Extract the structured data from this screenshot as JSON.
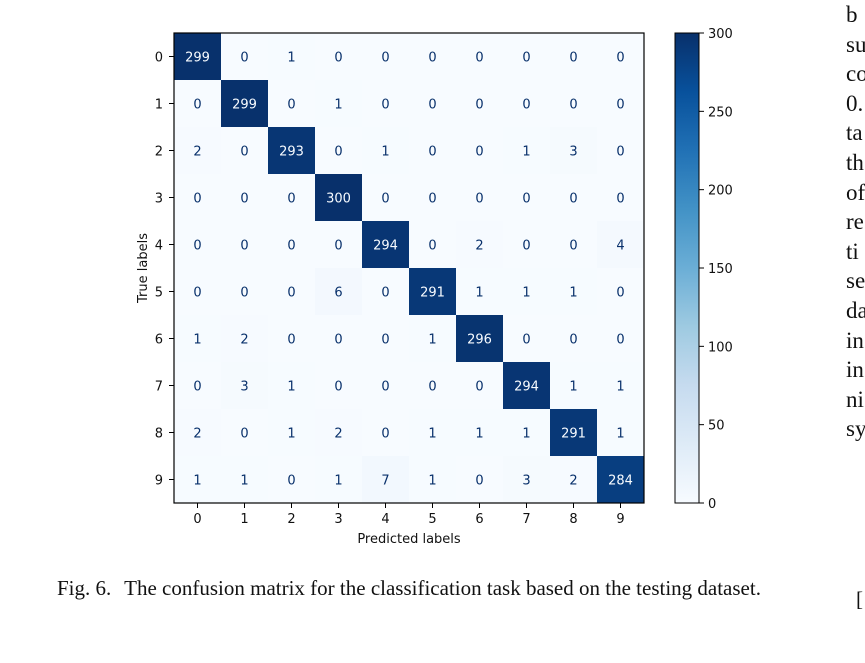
{
  "figure": {
    "caption_label": "Fig. 6.",
    "caption_text": "The confusion matrix for the classification task based on the testing dataset."
  },
  "chart_data": {
    "type": "heatmap",
    "title": "",
    "xlabel": "Predicted labels",
    "ylabel": "True labels",
    "x_categories": [
      "0",
      "1",
      "2",
      "3",
      "4",
      "5",
      "6",
      "7",
      "8",
      "9"
    ],
    "y_categories": [
      "0",
      "1",
      "2",
      "3",
      "4",
      "5",
      "6",
      "7",
      "8",
      "9"
    ],
    "values": [
      [
        299,
        0,
        1,
        0,
        0,
        0,
        0,
        0,
        0,
        0
      ],
      [
        0,
        299,
        0,
        1,
        0,
        0,
        0,
        0,
        0,
        0
      ],
      [
        2,
        0,
        293,
        0,
        1,
        0,
        0,
        1,
        3,
        0
      ],
      [
        0,
        0,
        0,
        300,
        0,
        0,
        0,
        0,
        0,
        0
      ],
      [
        0,
        0,
        0,
        0,
        294,
        0,
        2,
        0,
        0,
        4
      ],
      [
        0,
        0,
        0,
        6,
        0,
        291,
        1,
        1,
        1,
        0
      ],
      [
        1,
        2,
        0,
        0,
        0,
        1,
        296,
        0,
        0,
        0
      ],
      [
        0,
        3,
        1,
        0,
        0,
        0,
        0,
        294,
        1,
        1
      ],
      [
        2,
        0,
        1,
        2,
        0,
        1,
        1,
        1,
        291,
        1
      ],
      [
        1,
        1,
        0,
        1,
        7,
        1,
        0,
        3,
        2,
        284
      ]
    ],
    "colormap": "Blues",
    "colorbar": {
      "range": [
        0,
        300
      ],
      "ticks": [
        0,
        50,
        100,
        150,
        200,
        250,
        300
      ]
    }
  },
  "right_column_fragments": [
    "b",
    "su",
    "co",
    "0.",
    "ta",
    "th",
    "of",
    "re",
    "ti",
    "se",
    "da",
    "in",
    "in",
    "ni",
    "sy"
  ],
  "right_bracket": "["
}
